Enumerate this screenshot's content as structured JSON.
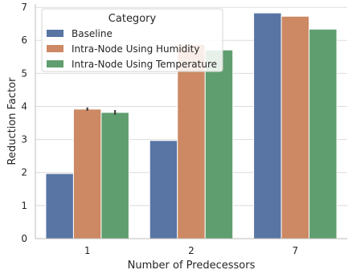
{
  "chart_data": {
    "type": "bar",
    "title": "",
    "xlabel": "Number of Predecessors",
    "ylabel": "Reduction Factor",
    "categories": [
      "1",
      "2",
      "7"
    ],
    "ylim": [
      0,
      7.1
    ],
    "yticks": [
      0,
      1,
      2,
      3,
      4,
      5,
      6,
      7
    ],
    "grid": true,
    "legend": {
      "title": "Category",
      "placement": "upper-left"
    },
    "series": [
      {
        "name": "Baseline",
        "color": "#5875a4",
        "values": [
          1.97,
          2.97,
          6.83
        ],
        "errors": [
          0,
          0,
          0
        ]
      },
      {
        "name": "Intra-Node Using Humidity",
        "color": "#cc8963",
        "values": [
          3.92,
          5.87,
          6.73
        ],
        "errors": [
          0.05,
          0,
          0
        ]
      },
      {
        "name": "Intra-Node Using Temperature",
        "color": "#5f9e6e",
        "values": [
          3.82,
          5.71,
          6.34
        ],
        "errors": [
          0.07,
          0,
          0
        ]
      }
    ]
  }
}
